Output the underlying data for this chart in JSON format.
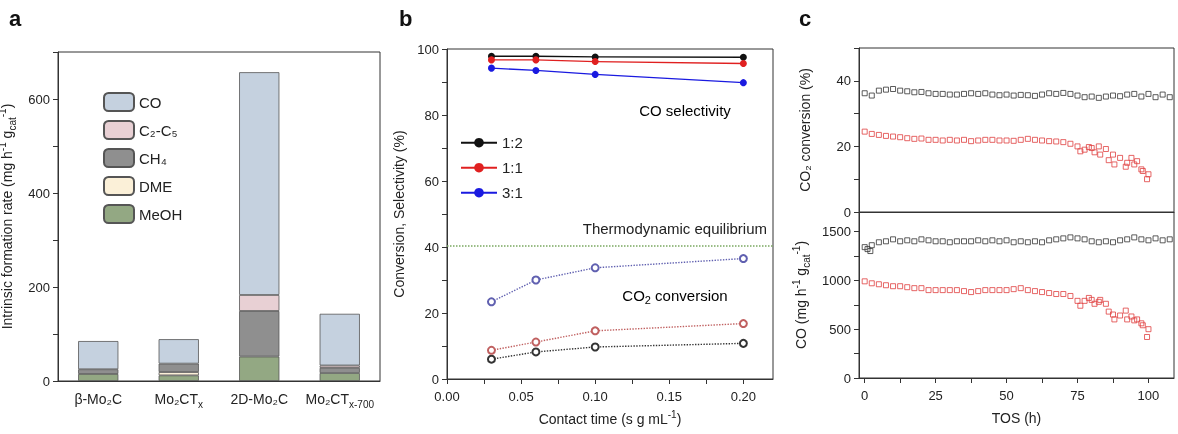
{
  "chart_data": [
    {
      "type": "bar",
      "title": "a",
      "stacked": true,
      "categories": [
        "β-Mo₂C",
        "Mo₂CT$_{x}$",
        "2D-Mo₂C",
        "Mo₂CT$_{x-700}$"
      ],
      "ylabel": "Intrinsic formation rate (mg h$^{-1}$ g$_{cat}$$^{-1}$)",
      "ylim": [
        0,
        700
      ],
      "yticks": [
        0,
        {
          "value": 100,
          "label": null
        },
        200,
        {
          "value": 300,
          "label": null
        },
        400,
        {
          "value": 500,
          "label": null
        },
        600,
        {
          "value": 700,
          "label": null
        }
      ],
      "legend": "top left",
      "grid": false,
      "series": [
        {
          "name": "MeOH",
          "color": "#93a883",
          "values": [
            15,
            12,
            52,
            17
          ]
        },
        {
          "name": "DME",
          "color": "#fbf0d8",
          "values": [
            null,
            7,
            null,
            null
          ]
        },
        {
          "name": "CH₄",
          "color": "#8f8f8f",
          "values": [
            10,
            18,
            97,
            11
          ]
        },
        {
          "name": "C₂-C₅",
          "color": "#e8d0d4",
          "values": [
            null,
            null,
            34,
            5
          ]
        },
        {
          "name": "CO",
          "color": "#c5d1df",
          "values": [
            60,
            52,
            474,
            110
          ]
        }
      ]
    },
    {
      "type": "line",
      "title": "b",
      "xlabel": "Contact time (s g mL$^{-1}$)",
      "ylabel": "Conversion, Selectivity (%)",
      "xlim": [
        0,
        0.22
      ],
      "xticks": [
        {
          "value": 0,
          "label": "0.00"
        },
        {
          "value": 0.025,
          "label": null
        },
        {
          "value": 0.05,
          "label": "0.05"
        },
        {
          "value": 0.075,
          "label": null
        },
        {
          "value": 0.1,
          "label": "0.10"
        },
        {
          "value": 0.125,
          "label": null
        },
        {
          "value": 0.15,
          "label": "0.15"
        },
        {
          "value": 0.175,
          "label": null
        },
        {
          "value": 0.2,
          "label": "0.20"
        }
      ],
      "ylim": [
        0,
        100
      ],
      "yticks": [
        0,
        {
          "value": 10,
          "label": null
        },
        20,
        {
          "value": 30,
          "label": null
        },
        40,
        {
          "value": 50,
          "label": null
        },
        60,
        {
          "value": 70,
          "label": null
        },
        80,
        {
          "value": 90,
          "label": null
        },
        100
      ],
      "legend": "left",
      "marker": "circle",
      "grid": false,
      "ref_lines": [
        {
          "axis": "y",
          "value": 40.5,
          "label": "Thermodynamic equilibrium",
          "color": "#7aa860",
          "line_style": "dotted"
        }
      ],
      "annotations": [
        "CO selectivity",
        "CO$_{2}$ conversion"
      ],
      "series": [
        {
          "name": "1:2",
          "color": "#111111",
          "line_style": "solid",
          "x": [
            0.03,
            0.06,
            0.1,
            0.2
          ],
          "values": [
            97.8,
            97.8,
            97.6,
            97.5
          ]
        },
        {
          "name": "1:1",
          "color": "#e02020",
          "line_style": "solid",
          "x": [
            0.03,
            0.06,
            0.1,
            0.2
          ],
          "values": [
            96.7,
            96.7,
            96.2,
            95.6
          ]
        },
        {
          "name": "3:1",
          "color": "#1a1ae0",
          "line_style": "solid",
          "x": [
            0.03,
            0.06,
            0.1,
            0.2
          ],
          "values": [
            94.2,
            93.5,
            92.3,
            89.8
          ]
        },
        {
          "color": "#333333",
          "line_style": "dotted",
          "x": [
            0.03,
            0.06,
            0.1,
            0.2
          ],
          "values": [
            6,
            8.2,
            9.7,
            10.8
          ]
        },
        {
          "color": "#c06060",
          "line_style": "dotted",
          "x": [
            0.03,
            0.06,
            0.1,
            0.2
          ],
          "values": [
            8.7,
            11.2,
            14.6,
            16.8
          ]
        },
        {
          "color": "#6060b0",
          "line_style": "dotted",
          "x": [
            0.03,
            0.06,
            0.1,
            0.2
          ],
          "values": [
            23.4,
            30,
            33.7,
            36.5
          ]
        }
      ]
    },
    {
      "type": "scatter",
      "title": "c",
      "ylabel": "CO₂ conversion (%)",
      "xlim": [
        -2,
        109
      ],
      "ylim": [
        0,
        50
      ],
      "yticks": [
        0,
        {
          "value": 10,
          "label": null
        },
        20,
        {
          "value": 30,
          "label": null
        },
        40,
        {
          "value": 50,
          "label": null
        }
      ],
      "tick_labels": "y",
      "marker": "square",
      "grid": false,
      "series": [
        {
          "color": "#333333",
          "x": [
            0,
            2.5,
            5,
            7.5,
            10,
            12.5,
            15,
            17.5,
            20,
            22.5,
            25,
            27.5,
            30,
            32.5,
            35,
            37.5,
            40,
            42.5,
            45,
            47.5,
            50,
            52.5,
            55,
            57.5,
            60,
            62.5,
            65,
            67.5,
            70,
            72.5,
            75,
            77.5,
            80,
            82.5,
            85,
            87.5,
            90,
            92.5,
            95,
            97.5,
            100,
            102.5,
            105,
            107.5
          ],
          "values": [
            36.2,
            35.5,
            37,
            37.3,
            37.5,
            37,
            36.8,
            36.5,
            36.6,
            36.2,
            36,
            36,
            35.8,
            35.8,
            36,
            36.2,
            36,
            36.2,
            35.8,
            35.6,
            35.8,
            35.5,
            35.7,
            35.6,
            35.4,
            35.8,
            36.2,
            36,
            36.3,
            36,
            35.5,
            35,
            35.2,
            34.8,
            35.2,
            35.5,
            35.3,
            35.8,
            36,
            35.2,
            36,
            35,
            35.8,
            35
          ]
        },
        {
          "color": "#e04040",
          "x": [
            0,
            2.5,
            5,
            7.5,
            10,
            12.5,
            15,
            17.5,
            20,
            22.5,
            25,
            27.5,
            30,
            32.5,
            35,
            37.5,
            40,
            42.5,
            45,
            47.5,
            50,
            52.5,
            55,
            57.5,
            60,
            62.5,
            65,
            67.5,
            70,
            72.5,
            75,
            77.5,
            80,
            82.5,
            85,
            87.5,
            90,
            92.5,
            95,
            97.5,
            100,
            76,
            79,
            81,
            83,
            86,
            88,
            92,
            94,
            96,
            98,
            99.5
          ],
          "values": [
            24.5,
            23.8,
            23.5,
            23.2,
            23,
            22.8,
            22.5,
            22.3,
            22.4,
            22,
            22,
            21.8,
            22,
            21.8,
            22,
            21.6,
            21.8,
            22,
            22,
            21.8,
            21.8,
            21.7,
            22,
            22.3,
            22,
            21.8,
            21.6,
            21.5,
            21.3,
            20.8,
            20,
            19,
            19.5,
            20,
            19.2,
            17.5,
            16.5,
            15,
            14.5,
            13,
            11.5,
            18.5,
            19.8,
            18.2,
            17.5,
            15.8,
            14.5,
            13.8,
            16.5,
            15.5,
            12.5,
            10
          ]
        }
      ]
    },
    {
      "type": "scatter",
      "xlabel": "TOS (h)",
      "ylabel": "CO (mg h$^{-1}$ g$_{cat}$$^{-1}$)",
      "xlim": [
        -2,
        109
      ],
      "xticks": [
        0,
        {
          "value": 12.5,
          "label": null
        },
        25,
        {
          "value": 37.5,
          "label": null
        },
        50,
        {
          "value": 62.5,
          "label": null
        },
        75,
        {
          "value": 87.5,
          "label": null
        },
        100
      ],
      "ylim": [
        0,
        1700
      ],
      "yticks": [
        0,
        {
          "value": 250,
          "label": null
        },
        500,
        {
          "value": 750,
          "label": null
        },
        1000,
        {
          "value": 1250,
          "label": null
        },
        1500
      ],
      "marker": "square",
      "grid": false,
      "series": [
        {
          "color": "#333333",
          "x": [
            0,
            1,
            2,
            2.5,
            5,
            7.5,
            10,
            12.5,
            15,
            17.5,
            20,
            22.5,
            25,
            27.5,
            30,
            32.5,
            35,
            37.5,
            40,
            42.5,
            45,
            47.5,
            50,
            52.5,
            55,
            57.5,
            60,
            62.5,
            65,
            67.5,
            70,
            72.5,
            75,
            77.5,
            80,
            82.5,
            85,
            87.5,
            90,
            92.5,
            95,
            97.5,
            100,
            102.5,
            105,
            107.5
          ],
          "values": [
            1340,
            1320,
            1300,
            1360,
            1390,
            1400,
            1420,
            1400,
            1410,
            1400,
            1420,
            1410,
            1400,
            1400,
            1390,
            1400,
            1400,
            1400,
            1410,
            1400,
            1410,
            1400,
            1410,
            1390,
            1400,
            1390,
            1400,
            1390,
            1410,
            1420,
            1430,
            1440,
            1430,
            1420,
            1400,
            1390,
            1400,
            1390,
            1410,
            1420,
            1440,
            1420,
            1410,
            1430,
            1410,
            1420
          ]
        },
        {
          "color": "#e04040",
          "x": [
            0,
            2.5,
            5,
            7.5,
            10,
            12.5,
            15,
            17.5,
            20,
            22.5,
            25,
            27.5,
            30,
            32.5,
            35,
            37.5,
            40,
            42.5,
            45,
            47.5,
            50,
            52.5,
            55,
            57.5,
            60,
            62.5,
            65,
            67.5,
            70,
            72.5,
            75,
            77.5,
            80,
            82.5,
            85,
            87.5,
            90,
            92.5,
            95,
            97.5,
            100,
            76,
            79,
            81,
            83,
            86,
            88,
            92,
            94,
            96,
            98,
            99.5
          ],
          "values": [
            990,
            970,
            960,
            950,
            940,
            940,
            930,
            920,
            920,
            900,
            900,
            900,
            900,
            900,
            890,
            880,
            890,
            900,
            900,
            900,
            900,
            910,
            920,
            900,
            890,
            880,
            870,
            860,
            860,
            840,
            790,
            790,
            800,
            780,
            760,
            650,
            640,
            600,
            590,
            560,
            500,
            740,
            820,
            760,
            800,
            680,
            600,
            690,
            630,
            600,
            540,
            420
          ]
        }
      ]
    }
  ]
}
